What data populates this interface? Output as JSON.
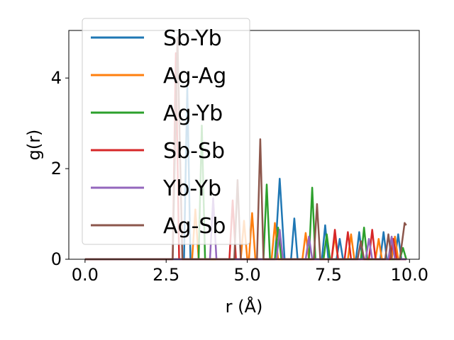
{
  "chart_data": {
    "type": "line",
    "xlabel": "r (Å)",
    "ylabel": "g(r)",
    "xlim": [
      -0.5,
      10.3
    ],
    "ylim": [
      0,
      5.05
    ],
    "xticks": [
      0.0,
      2.5,
      5.0,
      7.5,
      10.0
    ],
    "xtick_labels": [
      "0.0",
      "2.5",
      "5.0",
      "7.5",
      "10.0"
    ],
    "yticks": [
      0,
      2,
      4
    ],
    "ytick_labels": [
      "0",
      "2",
      "4"
    ],
    "grid": false,
    "legend_position": "top-left",
    "series": [
      {
        "name": "Sb-Yb",
        "color": "#1f77b4",
        "points": [
          [
            0,
            0
          ],
          [
            3.05,
            0
          ],
          [
            3.15,
            3.8
          ],
          [
            3.25,
            0
          ],
          [
            5.85,
            0
          ],
          [
            6.0,
            1.78
          ],
          [
            6.15,
            0
          ],
          [
            6.35,
            0
          ],
          [
            6.45,
            0.9
          ],
          [
            6.55,
            0
          ],
          [
            7.3,
            0
          ],
          [
            7.4,
            0.75
          ],
          [
            7.5,
            0
          ],
          [
            7.75,
            0
          ],
          [
            7.85,
            0.45
          ],
          [
            7.95,
            0
          ],
          [
            8.35,
            0
          ],
          [
            8.45,
            0.6
          ],
          [
            8.55,
            0
          ],
          [
            9.1,
            0
          ],
          [
            9.2,
            0.6
          ],
          [
            9.3,
            0
          ],
          [
            9.55,
            0
          ],
          [
            9.65,
            0.55
          ],
          [
            9.75,
            0
          ],
          [
            9.9,
            0
          ]
        ]
      },
      {
        "name": "Ag-Ag",
        "color": "#ff7f0e",
        "points": [
          [
            0,
            0
          ],
          [
            3.3,
            0
          ],
          [
            3.4,
            1.1
          ],
          [
            3.5,
            0
          ],
          [
            4.8,
            0
          ],
          [
            4.9,
            0.85
          ],
          [
            5.0,
            0
          ],
          [
            5.05,
            0
          ],
          [
            5.15,
            1.02
          ],
          [
            5.25,
            0
          ],
          [
            5.75,
            0
          ],
          [
            5.85,
            0.8
          ],
          [
            5.95,
            0
          ],
          [
            6.7,
            0
          ],
          [
            6.8,
            0.58
          ],
          [
            6.9,
            0
          ],
          [
            7.6,
            0
          ],
          [
            7.7,
            0.5
          ],
          [
            7.8,
            0
          ],
          [
            8.1,
            0
          ],
          [
            8.2,
            0.55
          ],
          [
            8.3,
            0
          ],
          [
            8.95,
            0
          ],
          [
            9.05,
            0.45
          ],
          [
            9.15,
            0
          ],
          [
            9.45,
            0
          ],
          [
            9.55,
            0.5
          ],
          [
            9.65,
            0
          ],
          [
            9.9,
            0
          ]
        ]
      },
      {
        "name": "Ag-Yb",
        "color": "#2ca02c",
        "points": [
          [
            0,
            0
          ],
          [
            3.5,
            0
          ],
          [
            3.6,
            2.95
          ],
          [
            3.7,
            0
          ],
          [
            5.5,
            0
          ],
          [
            5.6,
            1.65
          ],
          [
            5.7,
            0
          ],
          [
            5.85,
            0
          ],
          [
            5.95,
            0.7
          ],
          [
            6.05,
            0
          ],
          [
            6.9,
            0
          ],
          [
            7.0,
            1.58
          ],
          [
            7.1,
            0
          ],
          [
            7.35,
            0
          ],
          [
            7.45,
            0.55
          ],
          [
            7.55,
            0
          ],
          [
            8.5,
            0
          ],
          [
            8.6,
            0.7
          ],
          [
            8.7,
            0
          ],
          [
            9.7,
            0
          ],
          [
            9.8,
            0.25
          ],
          [
            9.9,
            0
          ]
        ]
      },
      {
        "name": "Sb-Sb",
        "color": "#d62728",
        "points": [
          [
            0,
            0
          ],
          [
            2.7,
            0
          ],
          [
            2.8,
            4.55
          ],
          [
            2.9,
            0
          ],
          [
            4.45,
            0
          ],
          [
            4.55,
            1.3
          ],
          [
            4.65,
            0
          ],
          [
            7.6,
            0
          ],
          [
            7.7,
            0.65
          ],
          [
            7.8,
            0
          ],
          [
            8.0,
            0
          ],
          [
            8.1,
            0.6
          ],
          [
            8.2,
            0
          ],
          [
            8.75,
            0
          ],
          [
            8.85,
            0.65
          ],
          [
            8.95,
            0
          ],
          [
            9.4,
            0
          ],
          [
            9.5,
            0.45
          ],
          [
            9.6,
            0
          ],
          [
            9.9,
            0
          ]
        ]
      },
      {
        "name": "Yb-Yb",
        "color": "#9467bd",
        "points": [
          [
            0,
            0
          ],
          [
            3.85,
            0
          ],
          [
            3.95,
            1.35
          ],
          [
            4.05,
            0
          ],
          [
            5.9,
            0
          ],
          [
            6.0,
            0.65
          ],
          [
            6.1,
            0
          ],
          [
            6.8,
            0
          ],
          [
            6.9,
            0.5
          ],
          [
            7.0,
            0
          ],
          [
            8.65,
            0
          ],
          [
            8.75,
            0.45
          ],
          [
            8.85,
            0
          ],
          [
            9.35,
            0
          ],
          [
            9.45,
            0.5
          ],
          [
            9.55,
            0
          ],
          [
            9.9,
            0
          ]
        ]
      },
      {
        "name": "Ag-Sb",
        "color": "#8c564b",
        "points": [
          [
            0,
            0
          ],
          [
            2.7,
            0
          ],
          [
            2.85,
            4.9
          ],
          [
            3.0,
            0
          ],
          [
            4.6,
            0
          ],
          [
            4.7,
            1.75
          ],
          [
            4.8,
            0
          ],
          [
            5.3,
            0
          ],
          [
            5.4,
            2.65
          ],
          [
            5.5,
            0
          ],
          [
            7.05,
            0
          ],
          [
            7.15,
            1.22
          ],
          [
            7.25,
            0
          ],
          [
            8.4,
            0
          ],
          [
            8.5,
            0.4
          ],
          [
            8.6,
            0
          ],
          [
            9.25,
            0
          ],
          [
            9.35,
            0.55
          ],
          [
            9.45,
            0
          ],
          [
            9.7,
            0
          ],
          [
            9.85,
            0.8
          ],
          [
            9.9,
            0.75
          ]
        ]
      }
    ]
  }
}
